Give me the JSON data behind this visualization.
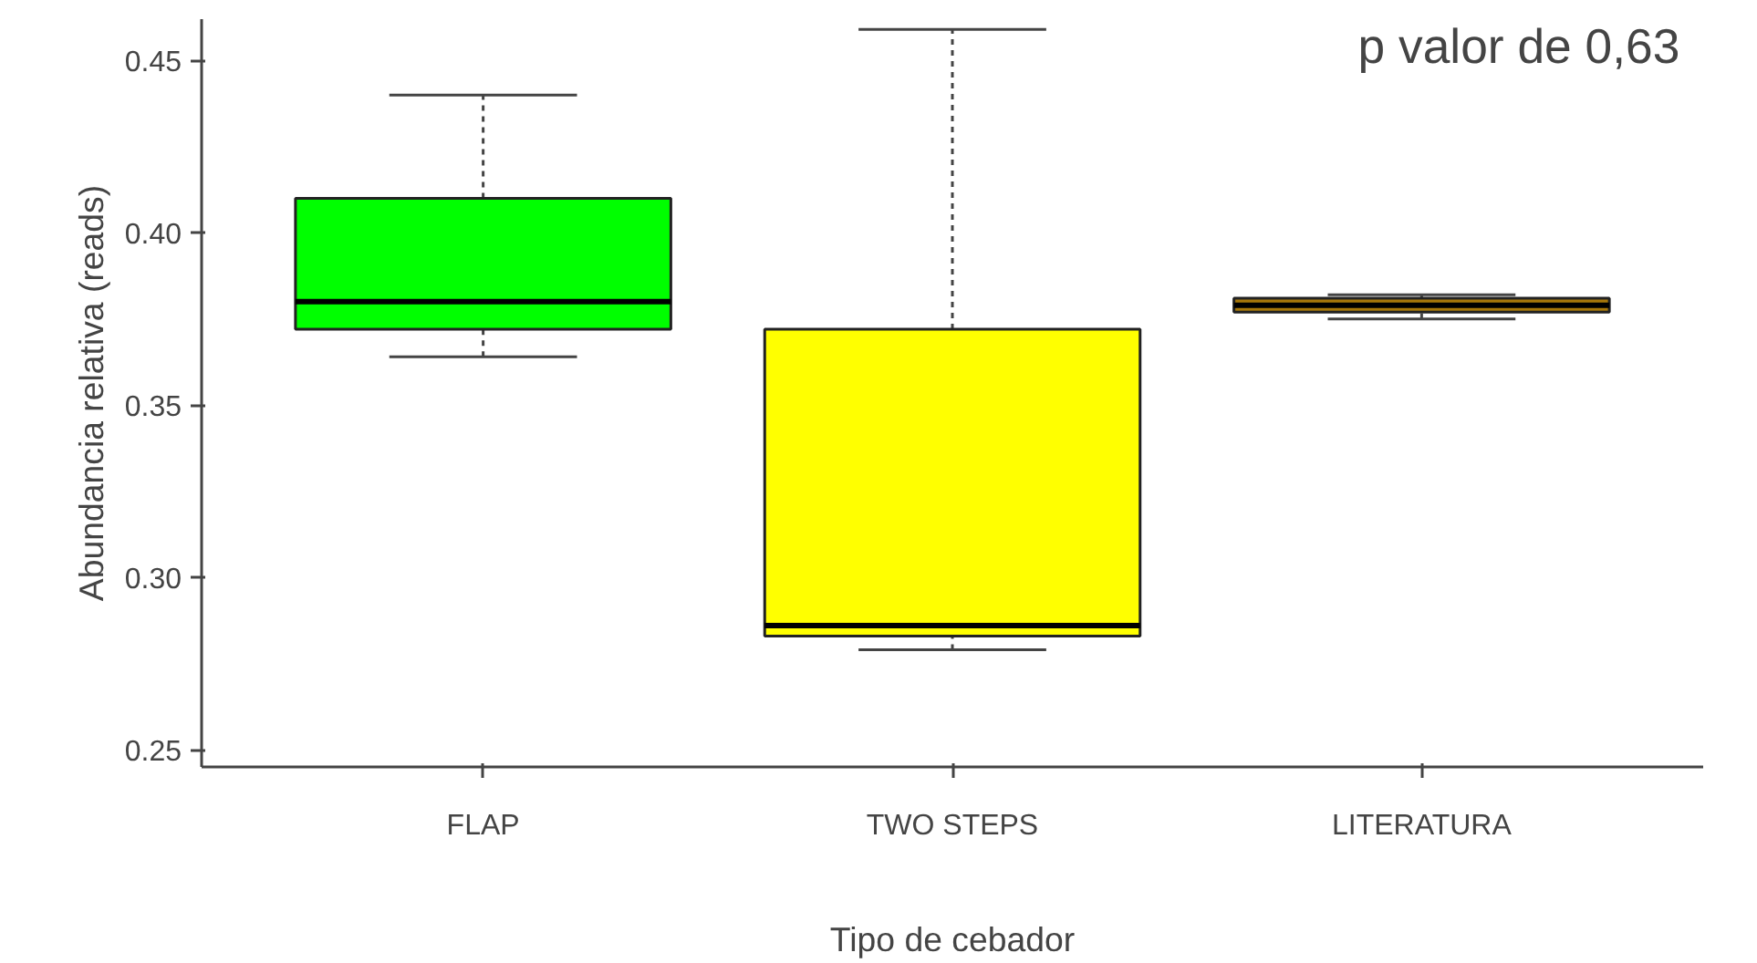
{
  "chart_data": {
    "type": "box",
    "xlabel": "Tipo de cebador",
    "ylabel": "Abundancia relativa (reads)",
    "categories": [
      "FLAP",
      "TWO STEPS",
      "LITERATURA"
    ],
    "colors": [
      "#00ff00",
      "#ffff00",
      "#a8780a"
    ],
    "boxes": [
      {
        "low": 0.364,
        "q1": 0.372,
        "median": 0.38,
        "q3": 0.41,
        "high": 0.44
      },
      {
        "low": 0.279,
        "q1": 0.283,
        "median": 0.286,
        "q3": 0.372,
        "high": 0.459
      },
      {
        "low": 0.375,
        "q1": 0.377,
        "median": 0.379,
        "q3": 0.381,
        "high": 0.382
      }
    ],
    "ylim": [
      0.245,
      0.462
    ],
    "yticks": [
      {
        "value": 0.25,
        "label": "0.25"
      },
      {
        "value": 0.3,
        "label": "0.30"
      },
      {
        "value": 0.35,
        "label": "0.35"
      },
      {
        "value": 0.4,
        "label": "0.40"
      },
      {
        "value": 0.45,
        "label": "0.45"
      }
    ],
    "grid": false,
    "annotations": [
      "p valor de 0,63"
    ]
  }
}
